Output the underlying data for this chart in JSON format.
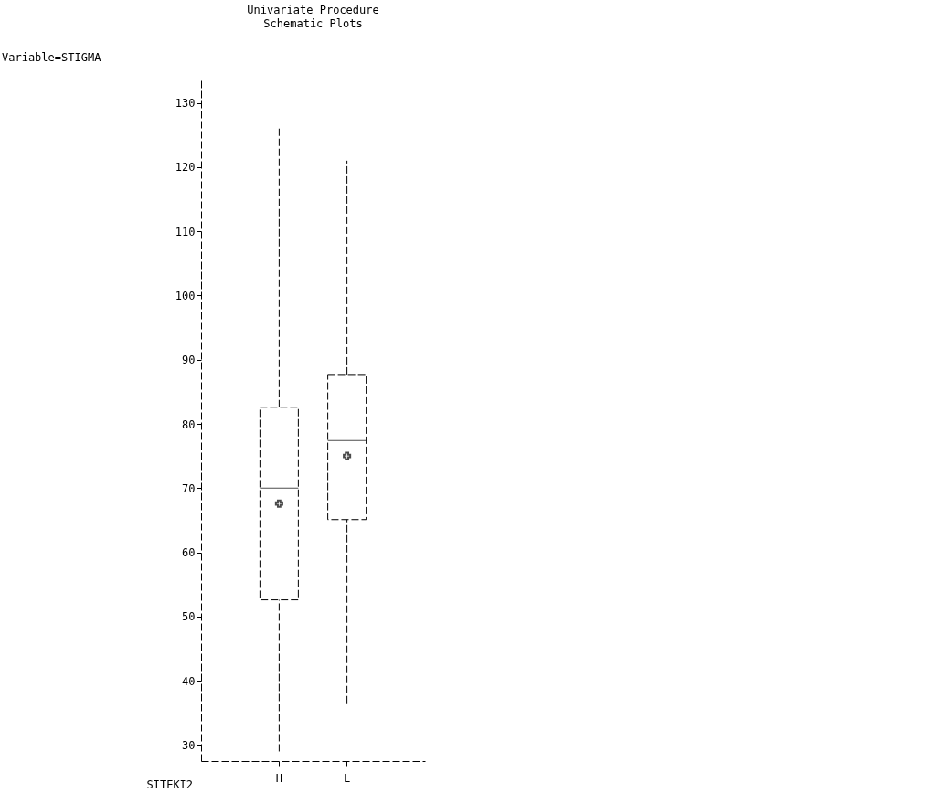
{
  "chart_data": {
    "type": "box",
    "title": "Univariate Procedure",
    "subtitle": "Schematic Plots",
    "annotations": [
      "Variable=STIGMA"
    ],
    "xlabel": "SITEKI2",
    "categories": [
      "H",
      "L"
    ],
    "boxes": [
      {
        "low": 29,
        "q1": 52.6,
        "median": 70,
        "q3": 82.6,
        "high": 126,
        "mean": 67.6
      },
      {
        "low": 36.5,
        "q1": 65.1,
        "median": 77.4,
        "q3": 87.7,
        "high": 121,
        "mean": 75
      }
    ],
    "ylim": [
      27.5,
      133.5
    ],
    "yticks": [
      30,
      40,
      50,
      60,
      70,
      80,
      90,
      100,
      110,
      120,
      130
    ],
    "grid": false,
    "line_style": "dashed",
    "marker": "cross",
    "color": "#000000"
  }
}
